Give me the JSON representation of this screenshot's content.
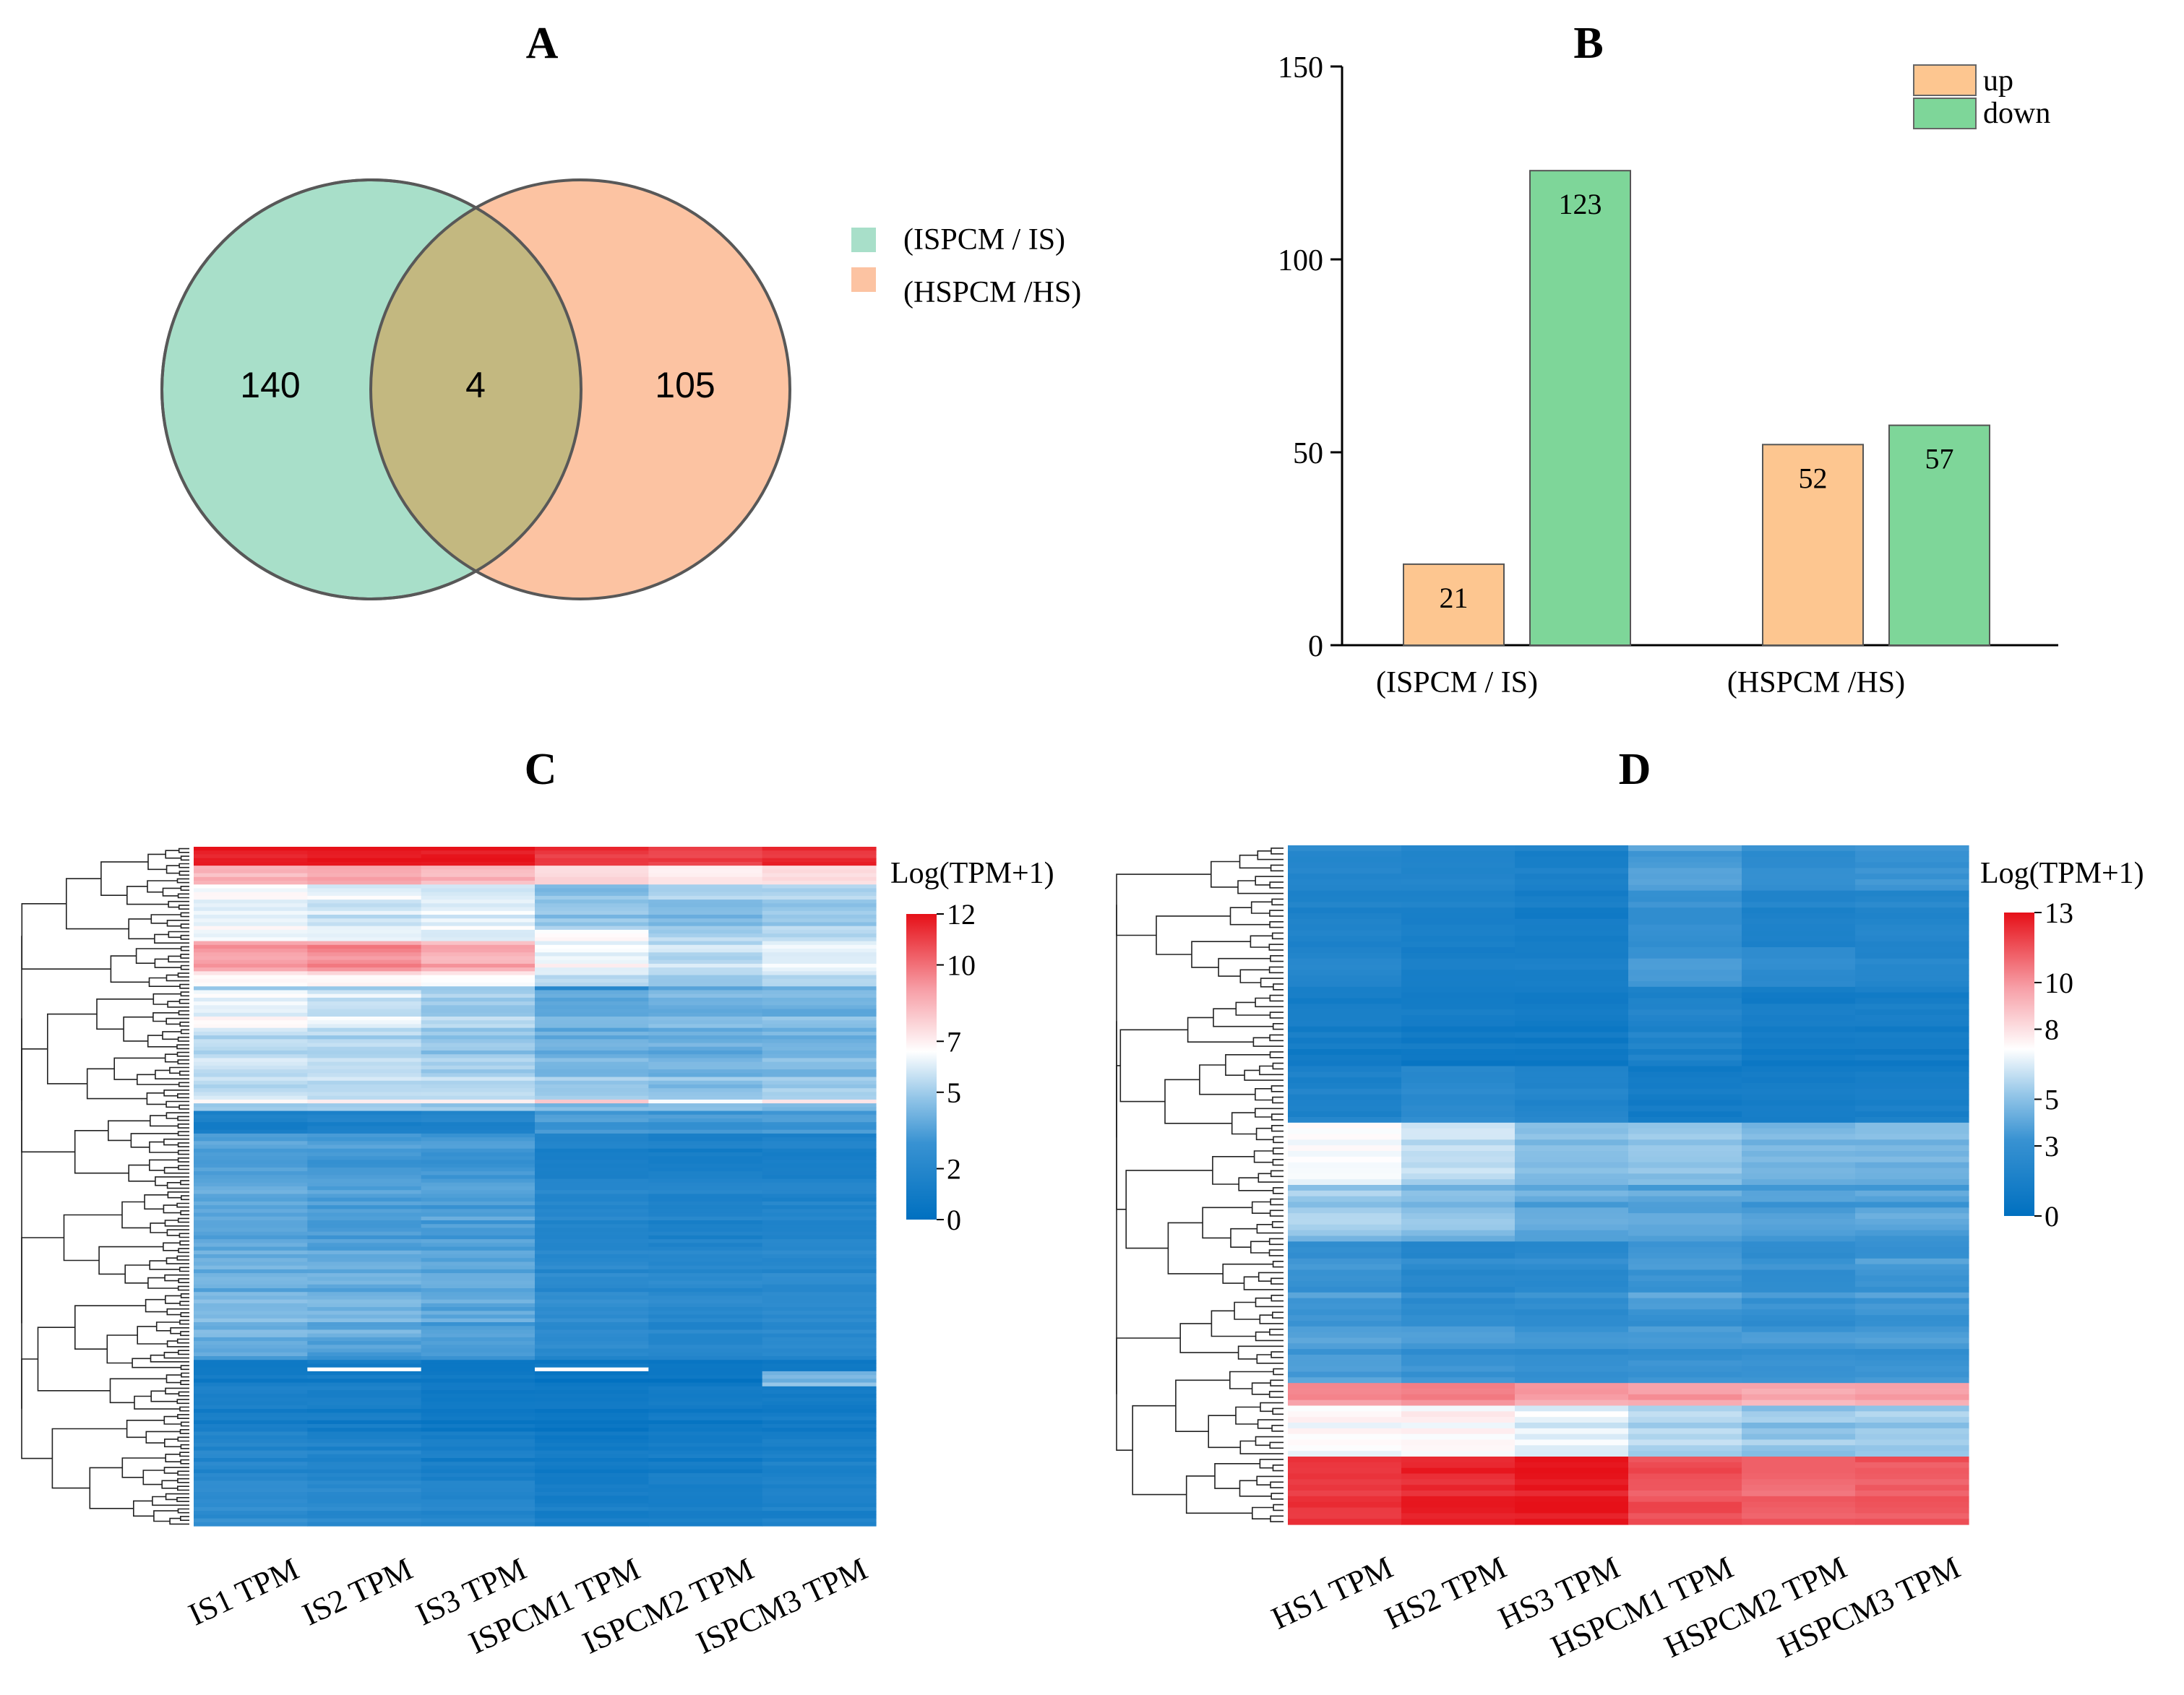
{
  "chart_data": [
    {
      "type": "venn",
      "panel": "A",
      "sets": [
        {
          "name": "(ISPCM / IS)",
          "color": "#a8dfc9"
        },
        {
          "name": "(HSPCM /HS)",
          "color": "#fcc3a2"
        }
      ],
      "overlap_color": "#c3b880",
      "values": {
        "left_only": "140",
        "intersection": "4",
        "right_only": "105"
      }
    },
    {
      "type": "bar",
      "panel": "B",
      "categories": [
        "(ISPCM / IS)",
        "(HSPCM /HS)"
      ],
      "series": [
        {
          "name": "up",
          "color": "#fdc690",
          "values": [
            21,
            52
          ]
        },
        {
          "name": "down",
          "color": "#7ed699",
          "values": [
            123,
            57
          ]
        }
      ],
      "ylim": [
        0,
        150
      ],
      "yticks": [
        0,
        50,
        100,
        150
      ],
      "legend_position": "top-right"
    },
    {
      "type": "heatmap",
      "panel": "C",
      "columns": [
        "IS1 TPM",
        "IS2 TPM",
        "IS3 TPM",
        "ISPCM1 TPM",
        "ISPCM2 TPM",
        "ISPCM3 TPM"
      ],
      "colorbar_title": "Log(TPM+1)",
      "colorbar_ticks": [
        0,
        2,
        5,
        7,
        10,
        12
      ],
      "color_range": [
        0,
        12
      ],
      "n_rows": 180,
      "row_blocks": [
        {
          "rows": 5,
          "values": [
            11.6,
            11.9,
            11.8,
            11.0,
            10.9,
            11.3
          ]
        },
        {
          "rows": 5,
          "values": [
            8.6,
            8.9,
            8.4,
            7.7,
            7.2,
            7.6
          ]
        },
        {
          "rows": 4,
          "values": [
            6.6,
            6.0,
            5.6,
            4.4,
            4.9,
            5.3
          ]
        },
        {
          "rows": 8,
          "values": [
            6.3,
            5.9,
            6.3,
            4.8,
            4.5,
            5.0
          ]
        },
        {
          "rows": 3,
          "values": [
            6.1,
            6.2,
            5.8,
            6.6,
            5.1,
            5.2
          ]
        },
        {
          "rows": 8,
          "values": [
            9.1,
            9.3,
            8.7,
            6.4,
            5.6,
            6.2
          ]
        },
        {
          "rows": 4,
          "values": [
            7.0,
            7.1,
            6.8,
            5.8,
            5.3,
            5.7
          ]
        },
        {
          "rows": 1,
          "values": [
            5.0,
            4.9,
            4.7,
            1.9,
            3.6,
            3.9
          ]
        },
        {
          "rows": 11,
          "values": [
            6.4,
            5.9,
            5.1,
            3.9,
            4.1,
            4.3
          ]
        },
        {
          "rows": 12,
          "values": [
            5.5,
            5.4,
            4.9,
            4.1,
            4.0,
            4.2
          ]
        },
        {
          "rows": 6,
          "values": [
            5.6,
            5.5,
            5.4,
            5.0,
            4.6,
            5.0
          ]
        },
        {
          "rows": 1,
          "values": [
            6.4,
            6.7,
            7.0,
            8.0,
            6.2,
            7.2
          ]
        },
        {
          "rows": 2,
          "values": [
            4.7,
            4.8,
            4.5,
            4.0,
            4.1,
            4.0
          ]
        },
        {
          "rows": 6,
          "values": [
            1.4,
            1.6,
            1.8,
            3.3,
            3.1,
            3.2
          ]
        },
        {
          "rows": 14,
          "values": [
            3.6,
            3.4,
            3.3,
            1.7,
            1.5,
            1.6
          ]
        },
        {
          "rows": 16,
          "values": [
            3.7,
            3.3,
            3.4,
            1.9,
            1.6,
            1.8
          ]
        },
        {
          "rows": 14,
          "values": [
            3.9,
            3.7,
            3.6,
            2.2,
            2.0,
            2.1
          ]
        },
        {
          "rows": 10,
          "values": [
            4.3,
            4.0,
            3.6,
            2.4,
            2.1,
            2.2
          ]
        },
        {
          "rows": 6,
          "values": [
            3.8,
            3.4,
            3.3,
            2.3,
            2.0,
            2.3
          ]
        },
        {
          "rows": 2,
          "values": [
            1.2,
            1.4,
            1.1,
            1.1,
            1.0,
            1.2
          ]
        },
        {
          "rows": 1,
          "values": [
            1.0,
            6.9,
            0.8,
            6.9,
            0.8,
            0.9
          ]
        },
        {
          "rows": 4,
          "values": [
            1.1,
            1.2,
            0.8,
            0.7,
            0.7,
            4.5
          ]
        },
        {
          "rows": 12,
          "values": [
            1.3,
            1.1,
            0.7,
            0.6,
            0.8,
            0.9
          ]
        },
        {
          "rows": 13,
          "values": [
            2.0,
            1.7,
            1.3,
            0.9,
            1.1,
            1.3
          ]
        },
        {
          "rows": 12,
          "values": [
            2.6,
            2.3,
            2.0,
            1.3,
            1.4,
            1.7
          ]
        }
      ]
    },
    {
      "type": "heatmap",
      "panel": "D",
      "columns": [
        "HS1 TPM",
        "HS2 TPM",
        "HS3 TPM",
        "HSPCM1 TPM",
        "HSPCM2 TPM",
        "HSPCM3 TPM"
      ],
      "colorbar_title": "Log(TPM+1)",
      "colorbar_ticks": [
        0,
        3,
        5,
        8,
        10,
        13
      ],
      "color_range": [
        0,
        13
      ],
      "n_rows": 120,
      "row_blocks": [
        {
          "rows": 8,
          "values": [
            2.2,
            2.0,
            1.7,
            3.7,
            2.9,
            3.3
          ]
        },
        {
          "rows": 10,
          "values": [
            1.7,
            1.5,
            1.3,
            3.0,
            1.8,
            2.1
          ]
        },
        {
          "rows": 7,
          "values": [
            2.0,
            1.4,
            1.2,
            3.4,
            2.6,
            2.0
          ]
        },
        {
          "rows": 14,
          "values": [
            1.2,
            1.0,
            0.9,
            1.7,
            1.1,
            1.2
          ]
        },
        {
          "rows": 10,
          "values": [
            1.7,
            2.4,
            2.0,
            1.1,
            1.2,
            1.3
          ]
        },
        {
          "rows": 11,
          "values": [
            6.9,
            5.8,
            4.6,
            5.0,
            4.4,
            4.4
          ]
        },
        {
          "rows": 10,
          "values": [
            5.2,
            4.8,
            4.1,
            3.9,
            3.7,
            3.8
          ]
        },
        {
          "rows": 13,
          "values": [
            3.4,
            2.6,
            2.7,
            3.6,
            3.1,
            3.5
          ]
        },
        {
          "rows": 12,
          "values": [
            3.6,
            3.2,
            3.0,
            3.2,
            3.1,
            3.3
          ]
        },
        {
          "rows": 4,
          "values": [
            9.9,
            10.3,
            9.6,
            9.6,
            9.4,
            9.5
          ]
        },
        {
          "rows": 9,
          "values": [
            7.2,
            7.3,
            6.7,
            5.7,
            5.2,
            5.4
          ]
        },
        {
          "rows": 12,
          "values": [
            12.0,
            12.4,
            12.8,
            11.4,
            11.0,
            11.3
          ]
        }
      ]
    }
  ],
  "panels": {
    "a": {
      "label": "A"
    },
    "b": {
      "label": "B"
    },
    "c": {
      "label": "C"
    },
    "d": {
      "label": "D"
    }
  }
}
